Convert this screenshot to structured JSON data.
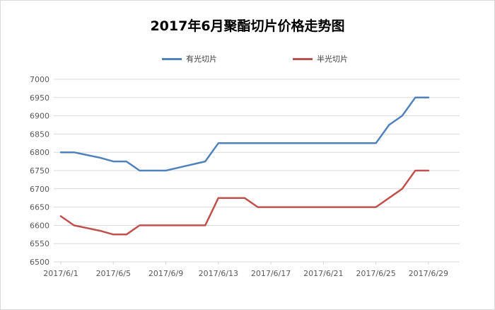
{
  "chart_data": {
    "type": "line",
    "title": "2017年6月聚酯切片价格走势图",
    "ylim": [
      6500,
      7000
    ],
    "y_ticks": [
      6500,
      6550,
      6600,
      6650,
      6700,
      6750,
      6800,
      6850,
      6900,
      6950,
      7000
    ],
    "x_tick_labels": [
      "2017/6/1",
      "2017/6/5",
      "2017/6/9",
      "2017/6/13",
      "2017/6/17",
      "2017/6/21",
      "2017/6/25",
      "2017/6/29"
    ],
    "x_tick_days": [
      1,
      5,
      9,
      13,
      17,
      21,
      25,
      29
    ],
    "x_range": [
      1,
      30
    ],
    "grid": true,
    "legend_position": "top",
    "series": [
      {
        "name": "有光切片",
        "color": "#4f81bd",
        "points": [
          [
            1,
            6800
          ],
          [
            2,
            6800
          ],
          [
            4,
            6785
          ],
          [
            5,
            6775
          ],
          [
            6,
            6775
          ],
          [
            7,
            6750
          ],
          [
            8,
            6750
          ],
          [
            9,
            6750
          ],
          [
            12,
            6775
          ],
          [
            13,
            6825
          ],
          [
            14,
            6825
          ],
          [
            15,
            6825
          ],
          [
            16,
            6825
          ],
          [
            17,
            6825
          ],
          [
            18,
            6825
          ],
          [
            19,
            6825
          ],
          [
            20,
            6825
          ],
          [
            21,
            6825
          ],
          [
            22,
            6825
          ],
          [
            23,
            6825
          ],
          [
            24,
            6825
          ],
          [
            25,
            6825
          ],
          [
            26,
            6875
          ],
          [
            27,
            6900
          ],
          [
            28,
            6950
          ],
          [
            29,
            6950
          ]
        ]
      },
      {
        "name": "半光切片",
        "color": "#c0504d",
        "points": [
          [
            1,
            6625
          ],
          [
            2,
            6600
          ],
          [
            4,
            6585
          ],
          [
            5,
            6575
          ],
          [
            6,
            6575
          ],
          [
            7,
            6600
          ],
          [
            8,
            6600
          ],
          [
            9,
            6600
          ],
          [
            12,
            6600
          ],
          [
            13,
            6675
          ],
          [
            14,
            6675
          ],
          [
            15,
            6675
          ],
          [
            16,
            6650
          ],
          [
            17,
            6650
          ],
          [
            18,
            6650
          ],
          [
            19,
            6650
          ],
          [
            20,
            6650
          ],
          [
            21,
            6650
          ],
          [
            22,
            6650
          ],
          [
            23,
            6650
          ],
          [
            24,
            6650
          ],
          [
            25,
            6650
          ],
          [
            26,
            6675
          ],
          [
            27,
            6700
          ],
          [
            28,
            6750
          ],
          [
            29,
            6750
          ]
        ]
      }
    ]
  }
}
